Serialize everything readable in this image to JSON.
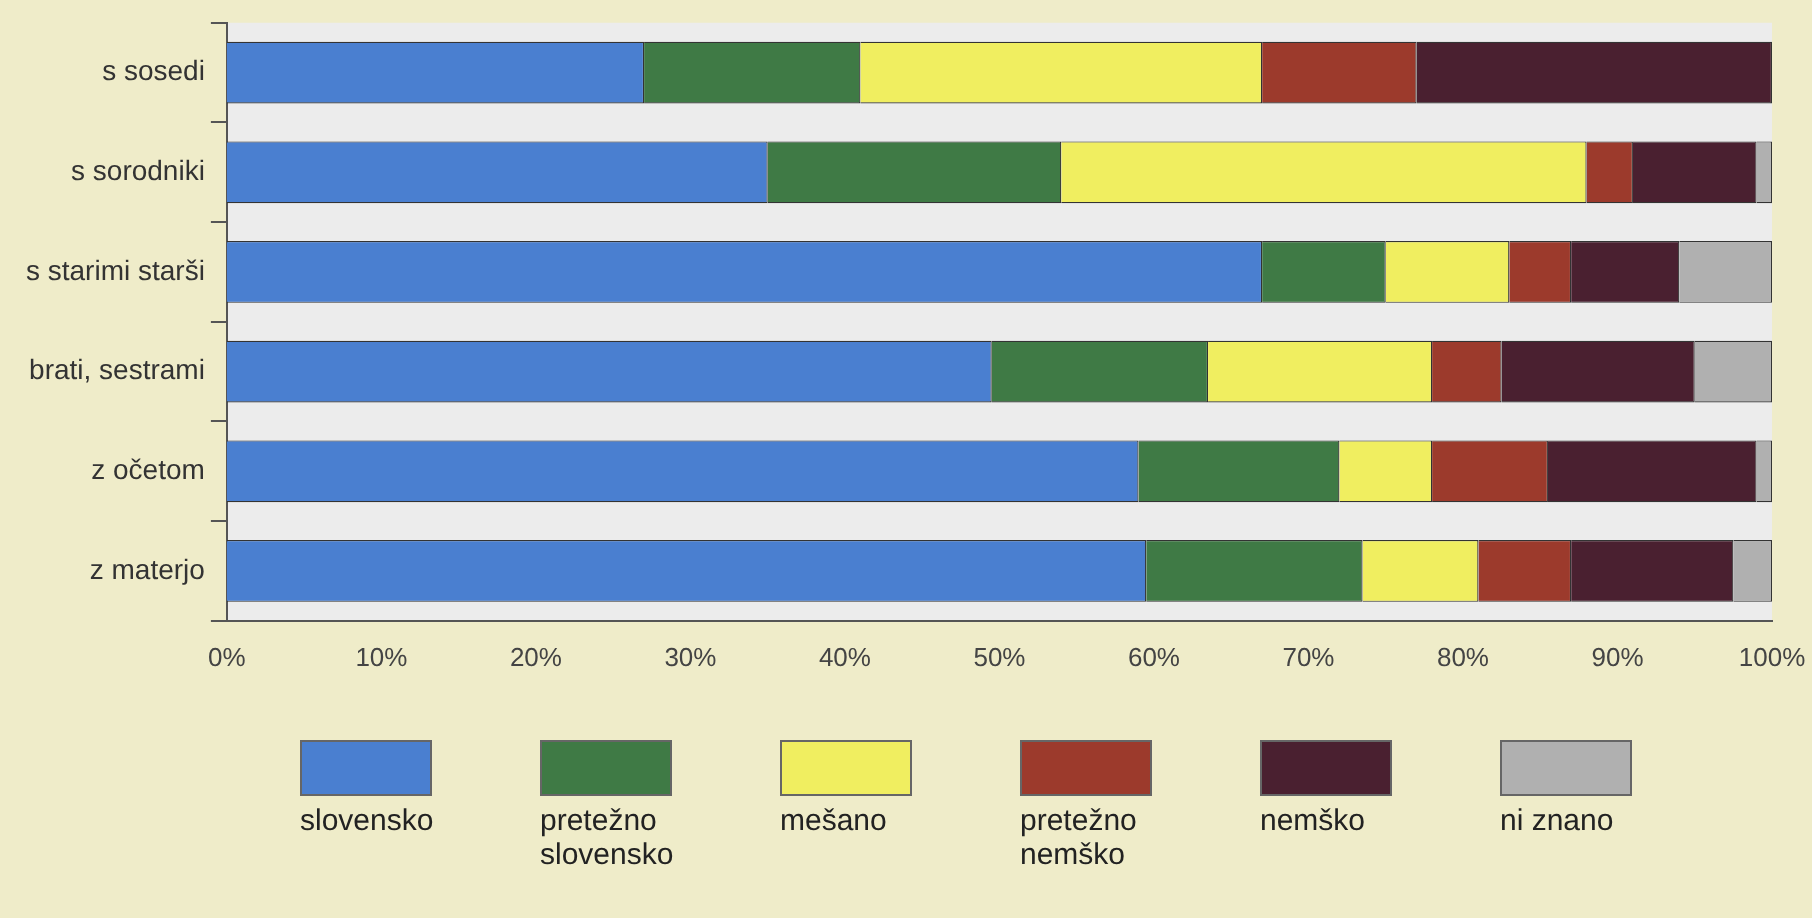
{
  "chart_data": {
    "type": "bar",
    "orientation": "horizontal",
    "stacked": true,
    "legend": "bottom",
    "categories": [
      "s sosedi",
      "s sorodniki",
      "s starimi starši",
      "brati, sestrami",
      "z očetom",
      "z materjo"
    ],
    "xlim": [
      0,
      100
    ],
    "xticks": [
      {
        "value": 0,
        "label": "0%"
      },
      {
        "value": 10,
        "label": "10%"
      },
      {
        "value": 20,
        "label": "20%"
      },
      {
        "value": 30,
        "label": "30%"
      },
      {
        "value": 40,
        "label": "40%"
      },
      {
        "value": 50,
        "label": "50%"
      },
      {
        "value": 60,
        "label": "60%"
      },
      {
        "value": 70,
        "label": "70%"
      },
      {
        "value": 80,
        "label": "80%"
      },
      {
        "value": 90,
        "label": "90%"
      },
      {
        "value": 100,
        "label": "100%"
      }
    ],
    "series": [
      {
        "name": "slovensko",
        "color": "#4a7fd0",
        "values": [
          27,
          35,
          67,
          49.5,
          59,
          59.5
        ]
      },
      {
        "name": "pretežno slovensko",
        "color": "#3f7a45",
        "values": [
          14,
          19,
          8,
          14,
          13,
          14
        ]
      },
      {
        "name": "mešano",
        "color": "#f0ee60",
        "values": [
          26,
          34,
          8,
          14.5,
          6,
          7.5
        ]
      },
      {
        "name": "pretežno nemško",
        "color": "#9c3a2c",
        "values": [
          10,
          3,
          4,
          4.5,
          7.5,
          6
        ]
      },
      {
        "name": "nemško",
        "color": "#4a2030",
        "values": [
          23,
          8,
          7,
          12.5,
          13.5,
          10.5
        ]
      },
      {
        "name": "ni znano",
        "color": "#b0b0b0",
        "values": [
          0,
          1,
          6,
          5,
          1,
          2.5
        ]
      }
    ]
  }
}
